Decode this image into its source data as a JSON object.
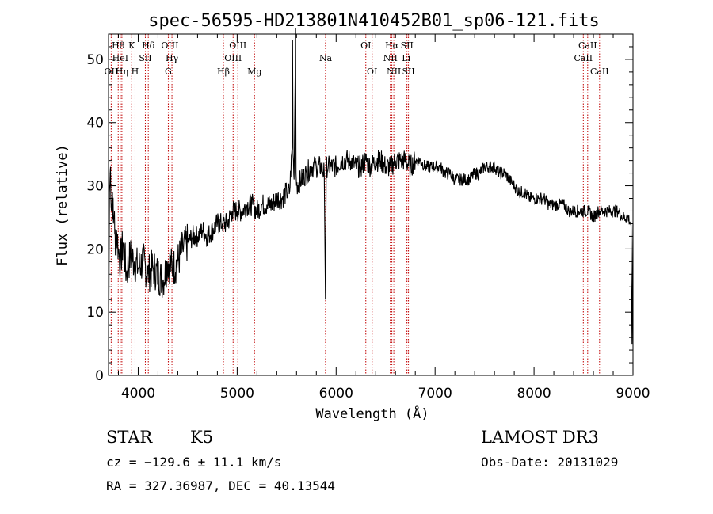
{
  "chart_data": {
    "type": "line",
    "title": "spec-56595-HD213801N410452B01_sp06-121.fits",
    "xlabel": "Wavelength (Å)",
    "ylabel": "Flux (relative)",
    "xlim": [
      3700,
      9000
    ],
    "ylim": [
      0,
      54
    ],
    "x_ticks": [
      4000,
      5000,
      6000,
      7000,
      8000,
      9000
    ],
    "y_ticks": [
      0,
      10,
      20,
      30,
      40,
      50
    ],
    "x_tick_labels": [
      "4000",
      "5000",
      "6000",
      "7000",
      "8000",
      "9000"
    ],
    "y_tick_labels": [
      "0",
      "10",
      "20",
      "30",
      "40",
      "50"
    ],
    "grid": false,
    "series": [
      {
        "x": [
          3700,
          3710,
          3720,
          3730,
          3740,
          3750,
          3760,
          3770,
          3780,
          3800,
          3820,
          3850,
          3880,
          3920,
          3960,
          4000,
          4050,
          4100,
          4150,
          4200,
          4250,
          4300,
          4350,
          4400,
          4450,
          4500,
          4550,
          4600,
          4650,
          4700,
          4750,
          4800,
          4850,
          4900,
          4950,
          5000,
          5050,
          5100,
          5150,
          5200,
          5250,
          5300,
          5350,
          5400,
          5450,
          5500,
          5530,
          5555,
          5560,
          5565,
          5575,
          5585,
          5590,
          5595,
          5600,
          5650,
          5700,
          5750,
          5800,
          5850,
          5880,
          5892,
          5900,
          5920,
          5950,
          6000,
          6050,
          6100,
          6150,
          6200,
          6250,
          6300,
          6350,
          6400,
          6450,
          6500,
          6550,
          6600,
          6650,
          6700,
          6750,
          6800,
          6850,
          6900,
          6950,
          7000,
          7050,
          7100,
          7150,
          7200,
          7250,
          7300,
          7350,
          7400,
          7450,
          7500,
          7550,
          7600,
          7650,
          7700,
          7750,
          7800,
          7850,
          7900,
          7950,
          8000,
          8050,
          8100,
          8150,
          8200,
          8250,
          8300,
          8350,
          8400,
          8450,
          8500,
          8550,
          8600,
          8650,
          8700,
          8750,
          8800,
          8850,
          8900,
          8950,
          8980,
          8990,
          9000
        ],
        "y": [
          0,
          29,
          33,
          26,
          29,
          24,
          26,
          19,
          23,
          20,
          18,
          21,
          16,
          19,
          18,
          17,
          18,
          16,
          17,
          16,
          15,
          18,
          17,
          18,
          20,
          21,
          22,
          22,
          23,
          22,
          23,
          24,
          24,
          24,
          26,
          26,
          26,
          27,
          27,
          26,
          27,
          27,
          27,
          28,
          28,
          29,
          29,
          36,
          53,
          35,
          31,
          45,
          55,
          32,
          30,
          31,
          32,
          33,
          33,
          33,
          32,
          12,
          33,
          33,
          33,
          33,
          34,
          34,
          34,
          33,
          33,
          34,
          33,
          34,
          34,
          33,
          33,
          34,
          34,
          34,
          33,
          34,
          34,
          33,
          33,
          33,
          33,
          32,
          32,
          31,
          31,
          31,
          31,
          32,
          32,
          33,
          33,
          33,
          32,
          32,
          31,
          30,
          29,
          29,
          28,
          28,
          28,
          28,
          27,
          27,
          27,
          27,
          26,
          26,
          26,
          26,
          26,
          25,
          26,
          26,
          26,
          26,
          26,
          25,
          25,
          24,
          5,
          24
        ]
      }
    ],
    "lines": [
      {
        "label": "OII",
        "wave": 3727,
        "row": 2
      },
      {
        "label": "Hθ",
        "wave": 3798,
        "row": 0
      },
      {
        "label": "HeI",
        "wave": 3819,
        "row": 1
      },
      {
        "label": "Hη",
        "wave": 3835,
        "row": 2
      },
      {
        "label": "K",
        "wave": 3934,
        "row": 0
      },
      {
        "label": "H",
        "wave": 3968,
        "row": 2
      },
      {
        "label": "SII",
        "wave": 4072,
        "row": 1
      },
      {
        "label": "Hδ",
        "wave": 4102,
        "row": 0
      },
      {
        "label": "G",
        "wave": 4304,
        "row": 2
      },
      {
        "label": "OIII",
        "wave": 4320,
        "row": 0
      },
      {
        "label": "Hγ",
        "wave": 4341,
        "row": 1
      },
      {
        "label": "Hβ",
        "wave": 4861,
        "row": 2
      },
      {
        "label": "OIII",
        "wave": 4959,
        "row": 1
      },
      {
        "label": "OIII",
        "wave": 5007,
        "row": 0
      },
      {
        "label": "Mg",
        "wave": 5175,
        "row": 2
      },
      {
        "label": "Na",
        "wave": 5893,
        "row": 1
      },
      {
        "label": "OI",
        "wave": 6300,
        "row": 0
      },
      {
        "label": "OI",
        "wave": 6364,
        "row": 2
      },
      {
        "label": "NII",
        "wave": 6548,
        "row": 1
      },
      {
        "label": "Hα",
        "wave": 6563,
        "row": 0
      },
      {
        "label": "NII",
        "wave": 6583,
        "row": 2
      },
      {
        "label": "Li",
        "wave": 6708,
        "row": 1
      },
      {
        "label": "SII",
        "wave": 6716,
        "row": 0
      },
      {
        "label": "SII",
        "wave": 6731,
        "row": 2
      },
      {
        "label": "CaII",
        "wave": 8498,
        "row": 1
      },
      {
        "label": "CaII",
        "wave": 8542,
        "row": 0
      },
      {
        "label": "CaII",
        "wave": 8662,
        "row": 2
      }
    ]
  },
  "info": {
    "object_type": "STAR",
    "subclass": "K5",
    "survey": "LAMOST DR3",
    "cz": "cz = −129.6 ± 11.1 km/s",
    "obs_date": "Obs-Date: 20131029",
    "coords": "RA = 327.36987, DEC =  40.13544"
  },
  "colors": {
    "spectrum": "#000000",
    "line_markers": "#c00000",
    "axes": "#000000",
    "background": "#ffffff"
  }
}
